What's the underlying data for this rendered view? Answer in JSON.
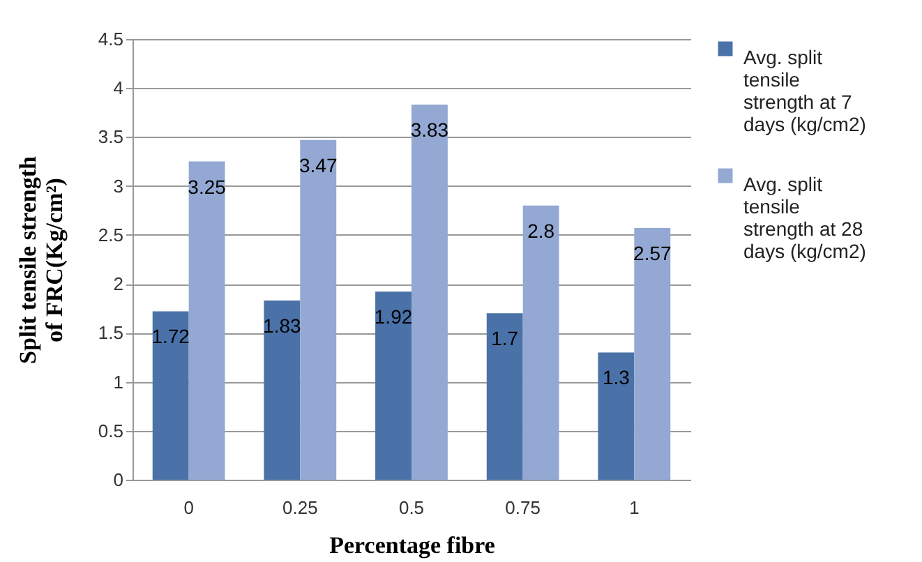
{
  "chart_data": {
    "type": "bar",
    "xlabel": "Percentage fibre",
    "ylabel": "Split tensile strength of FRC(Kg/cm²)",
    "categories": [
      "0",
      "0.25",
      "0.5",
      "0.75",
      "1"
    ],
    "series": [
      {
        "name": "Avg. split tensile strength at 7 days (kg/cm2)",
        "color": "#4a72a8",
        "values": [
          1.72,
          1.83,
          1.92,
          1.7,
          1.3
        ]
      },
      {
        "name": "Avg. split tensile strength at 28 days (kg/cm2)",
        "color": "#93a8d2",
        "values": [
          3.25,
          3.47,
          3.83,
          2.8,
          2.57
        ]
      }
    ],
    "ylim": [
      0,
      4.5
    ],
    "yticks": [
      0,
      0.5,
      1,
      1.5,
      2,
      2.5,
      3,
      3.5,
      4,
      4.5
    ],
    "grid": "y",
    "legend": "right",
    "data_labels": true
  }
}
